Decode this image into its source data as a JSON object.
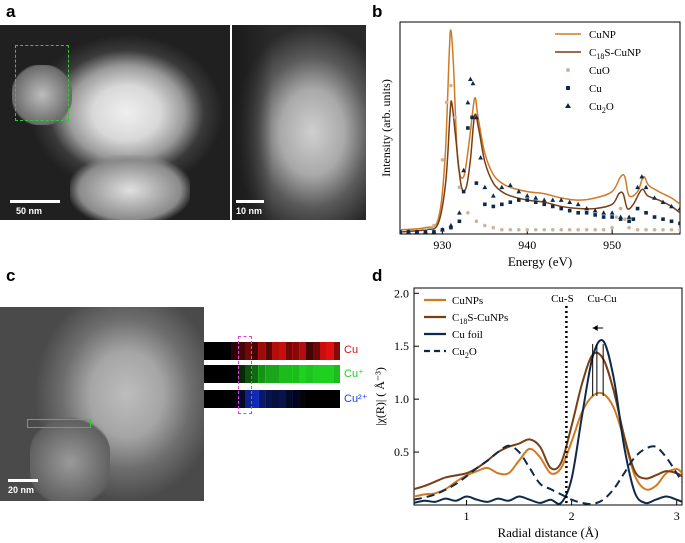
{
  "panels": {
    "a": {
      "label": "a",
      "scalebar_left": "50 nm",
      "scalebar_right": "10 nm"
    },
    "b": {
      "label": "b"
    },
    "c": {
      "label": "c",
      "scalebar": "20 nm",
      "map_labels": [
        "Cu",
        "Cu⁺",
        "Cu²⁺"
      ],
      "map_colors": [
        "#e01010",
        "#20d020",
        "#1a3cff"
      ]
    },
    "d": {
      "label": "d"
    }
  },
  "colors": {
    "orange": "#d07a24",
    "brown": "#7a3e14",
    "navy": "#0d2a4a",
    "cuo_gray": "#c8b59a",
    "green_box": "#2ecc2e",
    "magenta_box": "#e040e0"
  },
  "chart_data": [
    {
      "type": "line",
      "panel": "b",
      "xlabel": "Energy (eV)",
      "ylabel": "Intensity (arb. units)",
      "xlim": [
        925,
        958
      ],
      "ylim": [
        0,
        1.0
      ],
      "xticks": [
        930,
        940,
        950
      ],
      "legend_position": "top-right",
      "series": [
        {
          "name": "CuNP",
          "style": "line",
          "color": "#d07a24",
          "x": [
            925,
            928,
            929.5,
            930.3,
            930.8,
            931.0,
            931.3,
            931.8,
            932.5,
            933.2,
            933.8,
            934.2,
            935,
            936,
            937,
            938,
            940,
            942,
            944,
            946,
            948,
            950,
            951,
            951.5,
            952,
            953,
            953.7,
            954.3,
            955.5,
            957,
            958
          ],
          "y": [
            0.02,
            0.03,
            0.07,
            0.35,
            0.85,
            0.96,
            0.8,
            0.35,
            0.27,
            0.45,
            0.64,
            0.55,
            0.38,
            0.28,
            0.24,
            0.22,
            0.2,
            0.19,
            0.17,
            0.16,
            0.17,
            0.2,
            0.27,
            0.27,
            0.18,
            0.2,
            0.27,
            0.23,
            0.2,
            0.17,
            0.14
          ]
        },
        {
          "name": "C18S-CuNP",
          "style": "line",
          "color": "#7a3e14",
          "x": [
            925,
            928,
            929.5,
            930.4,
            930.9,
            931.1,
            931.5,
            932.2,
            932.8,
            933.3,
            933.8,
            934.3,
            935,
            936,
            937,
            938,
            940,
            942,
            944,
            946,
            948,
            950,
            950.8,
            951.3,
            951.8,
            952.5,
            953.5,
            954.2,
            955.5,
            957,
            958
          ],
          "y": [
            0.01,
            0.02,
            0.05,
            0.25,
            0.57,
            0.62,
            0.48,
            0.23,
            0.22,
            0.35,
            0.56,
            0.49,
            0.34,
            0.24,
            0.2,
            0.18,
            0.16,
            0.15,
            0.13,
            0.12,
            0.12,
            0.14,
            0.19,
            0.19,
            0.12,
            0.14,
            0.21,
            0.18,
            0.16,
            0.13,
            0.1
          ]
        },
        {
          "name": "CuO",
          "style": "marker-circle",
          "color": "#c8b59a",
          "x": [
            925,
            926,
            927,
            928,
            929,
            930,
            930.5,
            931,
            931.5,
            932,
            933,
            934,
            935,
            936,
            937,
            938,
            939,
            940,
            941,
            942,
            943,
            944,
            945,
            946,
            947,
            948,
            949,
            950,
            950.5,
            951,
            951.5,
            952,
            953,
            954,
            955,
            956,
            957,
            958
          ],
          "y": [
            0.01,
            0.01,
            0.01,
            0.02,
            0.04,
            0.35,
            0.62,
            0.7,
            0.55,
            0.22,
            0.1,
            0.06,
            0.04,
            0.03,
            0.02,
            0.02,
            0.02,
            0.02,
            0.02,
            0.02,
            0.02,
            0.02,
            0.02,
            0.02,
            0.02,
            0.02,
            0.02,
            0.03,
            0.08,
            0.12,
            0.07,
            0.03,
            0.02,
            0.02,
            0.02,
            0.02,
            0.02,
            0.02
          ]
        },
        {
          "name": "Cu",
          "style": "marker-square",
          "color": "#0d2a4a",
          "x": [
            925,
            926,
            927,
            928,
            929,
            930,
            931,
            932,
            932.5,
            933,
            933.5,
            934,
            935,
            936,
            937,
            938,
            939,
            940,
            941,
            942,
            943,
            944,
            945,
            946,
            947,
            948,
            949,
            950,
            951,
            952,
            952.5,
            953,
            954,
            955,
            956,
            957,
            958
          ],
          "y": [
            0.01,
            0.01,
            0.01,
            0.01,
            0.01,
            0.02,
            0.03,
            0.06,
            0.2,
            0.5,
            0.55,
            0.24,
            0.14,
            0.13,
            0.14,
            0.15,
            0.16,
            0.16,
            0.15,
            0.14,
            0.13,
            0.12,
            0.11,
            0.1,
            0.1,
            0.09,
            0.08,
            0.08,
            0.07,
            0.06,
            0.07,
            0.12,
            0.1,
            0.08,
            0.07,
            0.06,
            0.05
          ]
        },
        {
          "name": "Cu2O",
          "style": "marker-triangle",
          "color": "#0d2a4a",
          "x": [
            925,
            926,
            927,
            928,
            929,
            930,
            931,
            932,
            932.5,
            933,
            933.3,
            933.6,
            934,
            934.5,
            935,
            936,
            937,
            938,
            939,
            940,
            941,
            942,
            943,
            944,
            945,
            946,
            947,
            948,
            949,
            950,
            951,
            952,
            953,
            953.5,
            954,
            955,
            956,
            957,
            958
          ],
          "y": [
            0.01,
            0.01,
            0.01,
            0.01,
            0.01,
            0.02,
            0.04,
            0.1,
            0.3,
            0.62,
            0.73,
            0.71,
            0.55,
            0.36,
            0.22,
            0.18,
            0.22,
            0.23,
            0.2,
            0.18,
            0.17,
            0.16,
            0.16,
            0.16,
            0.15,
            0.14,
            0.12,
            0.11,
            0.1,
            0.1,
            0.08,
            0.08,
            0.22,
            0.27,
            0.22,
            0.17,
            0.15,
            0.13,
            0.12
          ]
        }
      ]
    },
    {
      "type": "line",
      "panel": "d",
      "xlabel": "Radial distance (Å)",
      "ylabel": "|χ(R)| ( Å⁻³)",
      "xlim": [
        0.5,
        3.05
      ],
      "ylim": [
        0,
        2.05
      ],
      "xticks": [
        1,
        2,
        3
      ],
      "yticks": [
        0.5,
        1.0,
        1.5,
        2.0
      ],
      "legend_position": "top-left",
      "annotations": [
        {
          "text": "Cu-S",
          "x": 1.95,
          "line": "dotted-vertical"
        },
        {
          "text": "Cu-Cu",
          "x": 2.27
        }
      ],
      "series": [
        {
          "name": "CuNPs",
          "color": "#d07a24",
          "dash": "solid",
          "x": [
            0.5,
            0.6,
            0.7,
            0.8,
            0.9,
            1.0,
            1.1,
            1.2,
            1.3,
            1.4,
            1.5,
            1.6,
            1.7,
            1.8,
            1.9,
            2.0,
            2.1,
            2.2,
            2.3,
            2.4,
            2.5,
            2.6,
            2.7,
            2.8,
            2.9,
            3.0,
            3.05
          ],
          "y": [
            0.08,
            0.1,
            0.11,
            0.15,
            0.22,
            0.28,
            0.32,
            0.35,
            0.3,
            0.3,
            0.42,
            0.53,
            0.45,
            0.3,
            0.35,
            0.6,
            0.88,
            1.03,
            1.05,
            0.92,
            0.62,
            0.28,
            0.15,
            0.18,
            0.3,
            0.34,
            0.3
          ]
        },
        {
          "name": "C18S-CuNPs",
          "color": "#7a3e14",
          "dash": "solid",
          "x": [
            0.5,
            0.6,
            0.7,
            0.8,
            0.9,
            1.0,
            1.1,
            1.2,
            1.3,
            1.4,
            1.5,
            1.6,
            1.7,
            1.8,
            1.9,
            2.0,
            2.1,
            2.2,
            2.3,
            2.4,
            2.5,
            2.6,
            2.7,
            2.8,
            2.9,
            3.0,
            3.05
          ],
          "y": [
            0.15,
            0.18,
            0.22,
            0.26,
            0.28,
            0.3,
            0.35,
            0.42,
            0.5,
            0.55,
            0.58,
            0.62,
            0.55,
            0.35,
            0.4,
            0.75,
            1.15,
            1.42,
            1.38,
            1.08,
            0.65,
            0.32,
            0.25,
            0.28,
            0.32,
            0.3,
            0.27
          ]
        },
        {
          "name": "Cu foil",
          "color": "#0d2a4a",
          "dash": "solid",
          "x": [
            0.5,
            0.6,
            0.7,
            0.8,
            0.9,
            1.0,
            1.1,
            1.2,
            1.3,
            1.4,
            1.5,
            1.6,
            1.7,
            1.8,
            1.9,
            2.0,
            2.1,
            2.2,
            2.3,
            2.4,
            2.5,
            2.6,
            2.7,
            2.8,
            2.9,
            3.0,
            3.05
          ],
          "y": [
            0.02,
            0.04,
            0.03,
            0.06,
            0.04,
            0.08,
            0.05,
            0.03,
            0.06,
            0.04,
            0.08,
            0.05,
            0.02,
            0.05,
            0.02,
            0.25,
            0.85,
            1.4,
            1.55,
            1.2,
            0.55,
            0.12,
            0.02,
            0.05,
            0.08,
            0.05,
            0.03
          ]
        },
        {
          "name": "Cu2O",
          "color": "#0d2a4a",
          "dash": "dashed",
          "x": [
            0.5,
            0.7,
            0.9,
            1.1,
            1.2,
            1.3,
            1.4,
            1.5,
            1.6,
            1.7,
            1.8,
            1.9,
            2.0,
            2.1,
            2.2,
            2.3,
            2.4,
            2.5,
            2.6,
            2.7,
            2.8,
            2.9,
            3.0,
            3.05
          ],
          "y": [
            0.05,
            0.1,
            0.2,
            0.35,
            0.42,
            0.5,
            0.56,
            0.5,
            0.35,
            0.2,
            0.15,
            0.1,
            0.05,
            0.02,
            0.01,
            0.05,
            0.15,
            0.3,
            0.45,
            0.53,
            0.55,
            0.45,
            0.3,
            0.22
          ]
        }
      ]
    }
  ]
}
